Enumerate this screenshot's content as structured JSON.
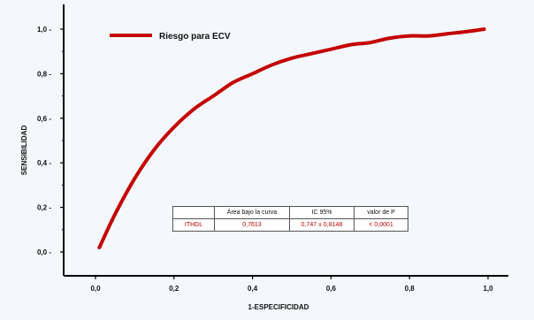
{
  "chart_data": {
    "type": "line",
    "xlabel": "1-ESPECIFICIDAD",
    "ylabel": "SENSIBILIDAD",
    "xlim": [
      0,
      1
    ],
    "ylim": [
      0,
      1
    ],
    "x_ticks": [
      "0,0",
      "0,2",
      "0,4",
      "0,6",
      "0,8",
      "1,0"
    ],
    "y_ticks": [
      "0,0",
      "0,2",
      "0,4",
      "0,6",
      "0,8",
      "1,0"
    ],
    "grid": false,
    "legend_position": "top-left",
    "series": [
      {
        "name": "Riesgo para ECV",
        "color": "#c40000",
        "x": [
          0.01,
          0.05,
          0.1,
          0.15,
          0.2,
          0.25,
          0.3,
          0.35,
          0.4,
          0.45,
          0.5,
          0.55,
          0.6,
          0.65,
          0.7,
          0.75,
          0.8,
          0.85,
          0.9,
          0.95,
          0.99
        ],
        "y": [
          0.02,
          0.17,
          0.33,
          0.46,
          0.56,
          0.64,
          0.7,
          0.76,
          0.8,
          0.84,
          0.87,
          0.89,
          0.91,
          0.93,
          0.94,
          0.96,
          0.97,
          0.97,
          0.98,
          0.99,
          1.0
        ]
      }
    ]
  },
  "stats_table": {
    "headers": [
      "",
      "Área bajo la curva",
      "IC 95%",
      "valor de P"
    ],
    "rows": [
      [
        "ITHDL",
        "0,7613",
        "0,747 ± 0,8148",
        "< 0,0001"
      ]
    ]
  }
}
